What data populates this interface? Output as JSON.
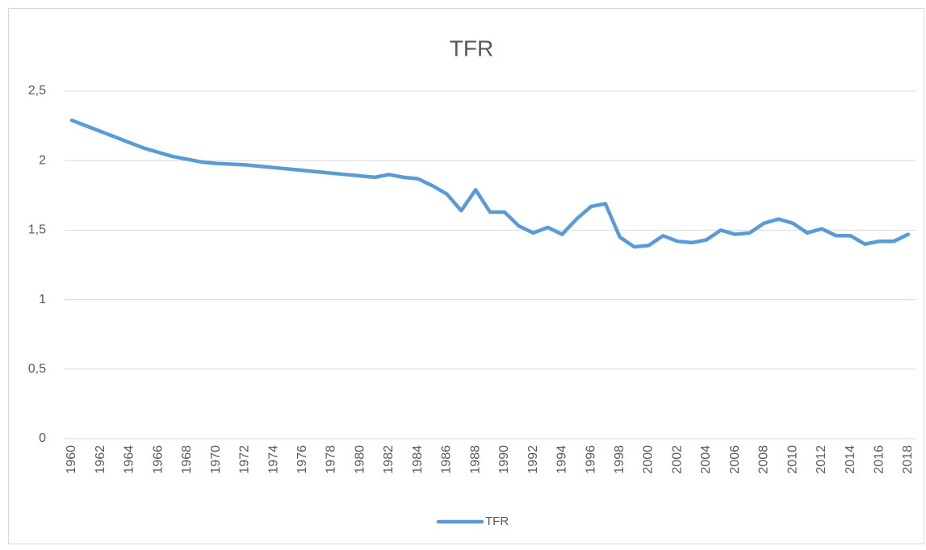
{
  "chart_data": {
    "type": "line",
    "title": "TFR",
    "categories": [
      "1960",
      null,
      "1962",
      null,
      "1964",
      null,
      "1966",
      null,
      "1968",
      null,
      "1970",
      null,
      "1972",
      null,
      "1974",
      null,
      "1976",
      null,
      "1978",
      null,
      "1980",
      null,
      "1982",
      null,
      "1984",
      null,
      "1986",
      null,
      "1988",
      null,
      "1990",
      null,
      "1992",
      null,
      "1994",
      null,
      "1996",
      null,
      "1998",
      null,
      "2000",
      null,
      "2002",
      null,
      "2004",
      null,
      "2006",
      null,
      "2008",
      null,
      "2010",
      null,
      "2012",
      null,
      "2014",
      null,
      "2016",
      null,
      "2018"
    ],
    "series": [
      {
        "name": "TFR",
        "color": "#5b9bd5",
        "values": [
          2.29,
          2.25,
          2.21,
          2.17,
          2.13,
          2.09,
          2.06,
          2.03,
          2.01,
          1.99,
          1.98,
          1.975,
          1.97,
          1.96,
          1.95,
          1.94,
          1.93,
          1.92,
          1.91,
          1.9,
          1.89,
          1.88,
          1.9,
          1.88,
          1.87,
          1.82,
          1.76,
          1.64,
          1.79,
          1.63,
          1.63,
          1.53,
          1.48,
          1.52,
          1.47,
          1.58,
          1.67,
          1.69,
          1.45,
          1.38,
          1.39,
          1.46,
          1.42,
          1.41,
          1.43,
          1.5,
          1.47,
          1.48,
          1.55,
          1.58,
          1.55,
          1.48,
          1.51,
          1.46,
          1.46,
          1.4,
          1.42,
          1.42,
          1.47
        ]
      }
    ],
    "ylim": [
      0,
      2.5
    ],
    "yticks": [
      0,
      {
        "value": 0.5,
        "label": "0,5"
      },
      1,
      {
        "value": 1.5,
        "label": "1,5"
      },
      2,
      {
        "value": 2.5,
        "label": "2,5"
      }
    ],
    "grid": true,
    "legend": "bottom"
  }
}
